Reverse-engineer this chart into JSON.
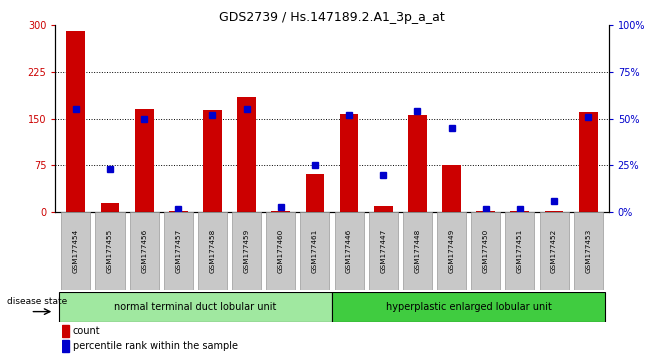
{
  "title": "GDS2739 / Hs.147189.2.A1_3p_a_at",
  "categories": [
    "GSM177454",
    "GSM177455",
    "GSM177456",
    "GSM177457",
    "GSM177458",
    "GSM177459",
    "GSM177460",
    "GSM177461",
    "GSM177446",
    "GSM177447",
    "GSM177448",
    "GSM177449",
    "GSM177450",
    "GSM177451",
    "GSM177452",
    "GSM177453"
  ],
  "red_values": [
    290,
    15,
    165,
    2,
    163,
    185,
    3,
    62,
    157,
    10,
    155,
    75,
    2,
    2,
    3,
    160
  ],
  "blue_values": [
    55,
    23,
    50,
    2,
    52,
    55,
    3,
    25,
    52,
    20,
    54,
    45,
    2,
    2,
    6,
    51
  ],
  "group1_label": "normal terminal duct lobular unit",
  "group2_label": "hyperplastic enlarged lobular unit",
  "group1_count": 8,
  "group2_count": 8,
  "ylim_left": [
    0,
    300
  ],
  "ylim_right": [
    0,
    100
  ],
  "yticks_left": [
    0,
    75,
    150,
    225,
    300
  ],
  "yticks_right": [
    0,
    25,
    50,
    75,
    100
  ],
  "ytick_labels_right": [
    "0%",
    "25%",
    "50%",
    "75%",
    "100%"
  ],
  "bar_color": "#cc0000",
  "marker_color": "#0000cc",
  "tick_bg": "#c8c8c8",
  "group1_bg": "#a0e8a0",
  "group2_bg": "#40cc40",
  "disease_state_label": "disease state",
  "legend_count": "count",
  "legend_percentile": "percentile rank within the sample",
  "gridline_values": [
    75,
    150,
    225
  ]
}
